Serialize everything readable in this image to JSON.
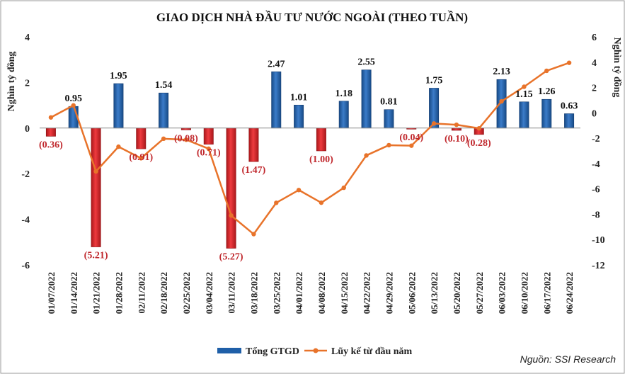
{
  "chart_data": {
    "type": "bar",
    "title": "GIAO DỊCH NHÀ ĐẦU TƯ NƯỚC NGOÀI (THEO TUẦN)",
    "ylabel_left": "Nghìn tỷ đồng",
    "ylabel_right": "Nghìn tỷ đồng",
    "ylim_left": [
      -6,
      4
    ],
    "ylim_right": [
      -12,
      6
    ],
    "yticks_left": [
      "4",
      "2",
      "0",
      "-2",
      "-4",
      "-6"
    ],
    "yticks_right": [
      "6",
      "4",
      "2",
      "0",
      "-2",
      "-4",
      "-6",
      "-8",
      "-10",
      "-12"
    ],
    "categories": [
      "01/07/2022",
      "01/14/2022",
      "01/21/2022",
      "01/28/2022",
      "02/11/2022",
      "02/18/2022",
      "02/25/2022",
      "03/04/2022",
      "03/11/2022",
      "03/18/2022",
      "03/25/2022",
      "04/01/2022",
      "04/08/2022",
      "04/15/2022",
      "04/22/2022",
      "04/29/2022",
      "05/06/2022",
      "05/13/2022",
      "05/20/2022",
      "05/27/2022",
      "06/03/2022",
      "06/10/2022",
      "06/17/2022",
      "06/24/2022"
    ],
    "series": [
      {
        "name": "Tổng GTGD",
        "type": "bar",
        "axis": "left",
        "values": [
          -0.36,
          0.95,
          -5.21,
          1.95,
          -0.91,
          1.54,
          -0.08,
          -0.71,
          -5.27,
          -1.47,
          2.47,
          1.01,
          -1.0,
          1.18,
          2.55,
          0.81,
          -0.04,
          1.75,
          -0.1,
          -0.28,
          2.13,
          1.15,
          1.26,
          0.63
        ],
        "labels": [
          "(0.36)",
          "0.95",
          "(5.21)",
          "1.95",
          "(0.91)",
          "1.54",
          "(0.08)",
          "(0.71)",
          "(5.27)",
          "(1.47)",
          "2.47",
          "1.01",
          "(1.00)",
          "1.18",
          "2.55",
          "0.81",
          "(0.04)",
          "1.75",
          "(0.10)",
          "(0.28)",
          "2.13",
          "1.15",
          "1.26",
          "0.63"
        ]
      },
      {
        "name": "Lũy kế từ đầu năm",
        "type": "line",
        "axis": "right",
        "values": [
          -0.36,
          0.59,
          -4.62,
          -2.67,
          -3.58,
          -2.04,
          -2.12,
          -2.83,
          -8.1,
          -9.57,
          -7.1,
          -6.09,
          -7.09,
          -5.91,
          -3.36,
          -2.55,
          -2.59,
          -0.84,
          -0.94,
          -1.22,
          0.91,
          2.06,
          3.32,
          3.95
        ]
      }
    ],
    "colors": {
      "bar_positive": "#1f5fa8",
      "bar_negative": "#d62024",
      "line": "#e8732a",
      "pos_label": "#111111",
      "neg_label": "#c0282d"
    },
    "legend": "bottom-center",
    "source": "Nguồn: SSI Research"
  }
}
